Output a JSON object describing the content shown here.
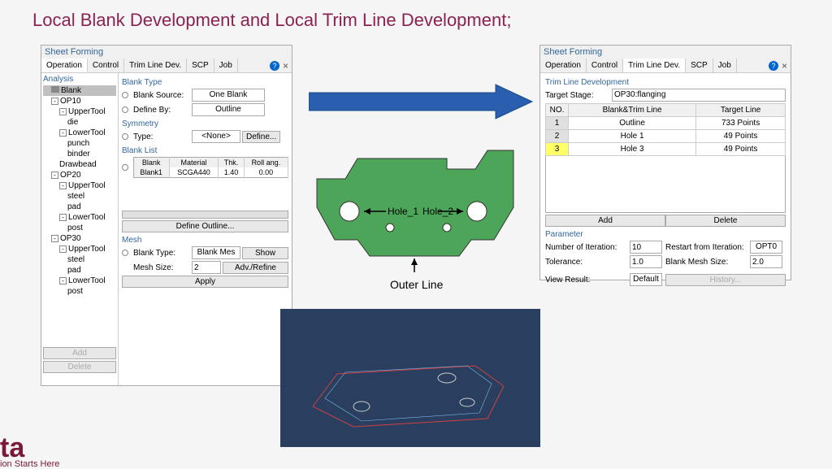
{
  "title": "Local Blank Development and Local Trim Line Development;",
  "panelLeft": {
    "header": "Sheet Forming",
    "tabs": [
      "Operation",
      "Control",
      "Trim Line Dev.",
      "SCP",
      "Job"
    ],
    "activeTab": 0,
    "tree": {
      "title": "Analysis",
      "items": [
        {
          "label": "Blank",
          "level": 1,
          "selected": true,
          "icon": true
        },
        {
          "label": "OP10",
          "level": 1,
          "exp": "-"
        },
        {
          "label": "UpperTool",
          "level": 2,
          "exp": "-"
        },
        {
          "label": "die",
          "level": 3
        },
        {
          "label": "LowerTool",
          "level": 2,
          "exp": "-"
        },
        {
          "label": "punch",
          "level": 3
        },
        {
          "label": "binder",
          "level": 3
        },
        {
          "label": "Drawbead",
          "level": 2
        },
        {
          "label": "OP20",
          "level": 1,
          "exp": "-"
        },
        {
          "label": "UpperTool",
          "level": 2,
          "exp": "-"
        },
        {
          "label": "steel",
          "level": 3
        },
        {
          "label": "pad",
          "level": 3
        },
        {
          "label": "LowerTool",
          "level": 2,
          "exp": "-"
        },
        {
          "label": "post",
          "level": 3
        },
        {
          "label": "OP30",
          "level": 1,
          "exp": "-"
        },
        {
          "label": "UpperTool",
          "level": 2,
          "exp": "-"
        },
        {
          "label": "steel",
          "level": 3
        },
        {
          "label": "pad",
          "level": 3
        },
        {
          "label": "LowerTool",
          "level": 2,
          "exp": "-"
        },
        {
          "label": "post",
          "level": 3
        }
      ],
      "addBtn": "Add",
      "deleteBtn": "Delete"
    },
    "blankType": {
      "header": "Blank Type",
      "sourceLabel": "Blank Source:",
      "sourceValue": "One Blank",
      "defineLabel": "Define By:",
      "defineValue": "Outline"
    },
    "symmetry": {
      "header": "Symmetry",
      "typeLabel": "Type:",
      "typeValue": "<None>",
      "defineBtn": "Define..."
    },
    "blankList": {
      "header": "Blank List",
      "cols": [
        "Blank",
        "Material",
        "Thk.",
        "Roll ang."
      ],
      "row": [
        "Blank1",
        "SCGA440",
        "1.40",
        "0.00"
      ],
      "defineOutlineBtn": "Define Outline..."
    },
    "mesh": {
      "header": "Mesh",
      "typeLabel": "Blank Type:",
      "typeValue": "Blank Mes",
      "showBtn": "Show",
      "sizeLabel": "Mesh Size:",
      "sizeValue": "2",
      "advBtn": "Adv./Refine",
      "applyBtn": "Apply"
    }
  },
  "panelRight": {
    "header": "Sheet Forming",
    "tabs": [
      "Operation",
      "Control",
      "Trim Line Dev.",
      "SCP",
      "Job"
    ],
    "activeTab": 2,
    "sectionHeader": "Trim Line Development",
    "targetLabel": "Target Stage:",
    "targetValue": "OP30:flanging",
    "tableCols": [
      "NO.",
      "Blank&Trim Line",
      "Target Line"
    ],
    "rows": [
      {
        "no": "1",
        "line": "Outline",
        "target": "733 Points"
      },
      {
        "no": "2",
        "line": "Hole 1",
        "target": "49 Points"
      },
      {
        "no": "3",
        "line": "Hole 3",
        "target": "49 Points",
        "hl": true
      }
    ],
    "addBtn": "Add",
    "deleteBtn": "Delete",
    "paramHeader": "Parameter",
    "numIterLabel": "Number of Iteration:",
    "numIterValue": "10",
    "restartLabel": "Restart from Iteration:",
    "restartValue": "OPT0",
    "tolLabel": "Tolerance:",
    "tolValue": "1.0",
    "meshSizeLabel": "Blank Mesh Size:",
    "meshSizeValue": "2.0",
    "viewLabel": "View Result:",
    "viewValue": "Default",
    "historyBtn": "History..."
  },
  "diagram": {
    "hole1": "Hole_1",
    "hole2": "Hole_2",
    "outer": "Outer Line",
    "partColor": "#4ca558",
    "holeColor": "#ffffff"
  },
  "logo": {
    "big": "ta",
    "sub": "ion Starts Here"
  },
  "arrow": {
    "color": "#2a5fb0"
  }
}
